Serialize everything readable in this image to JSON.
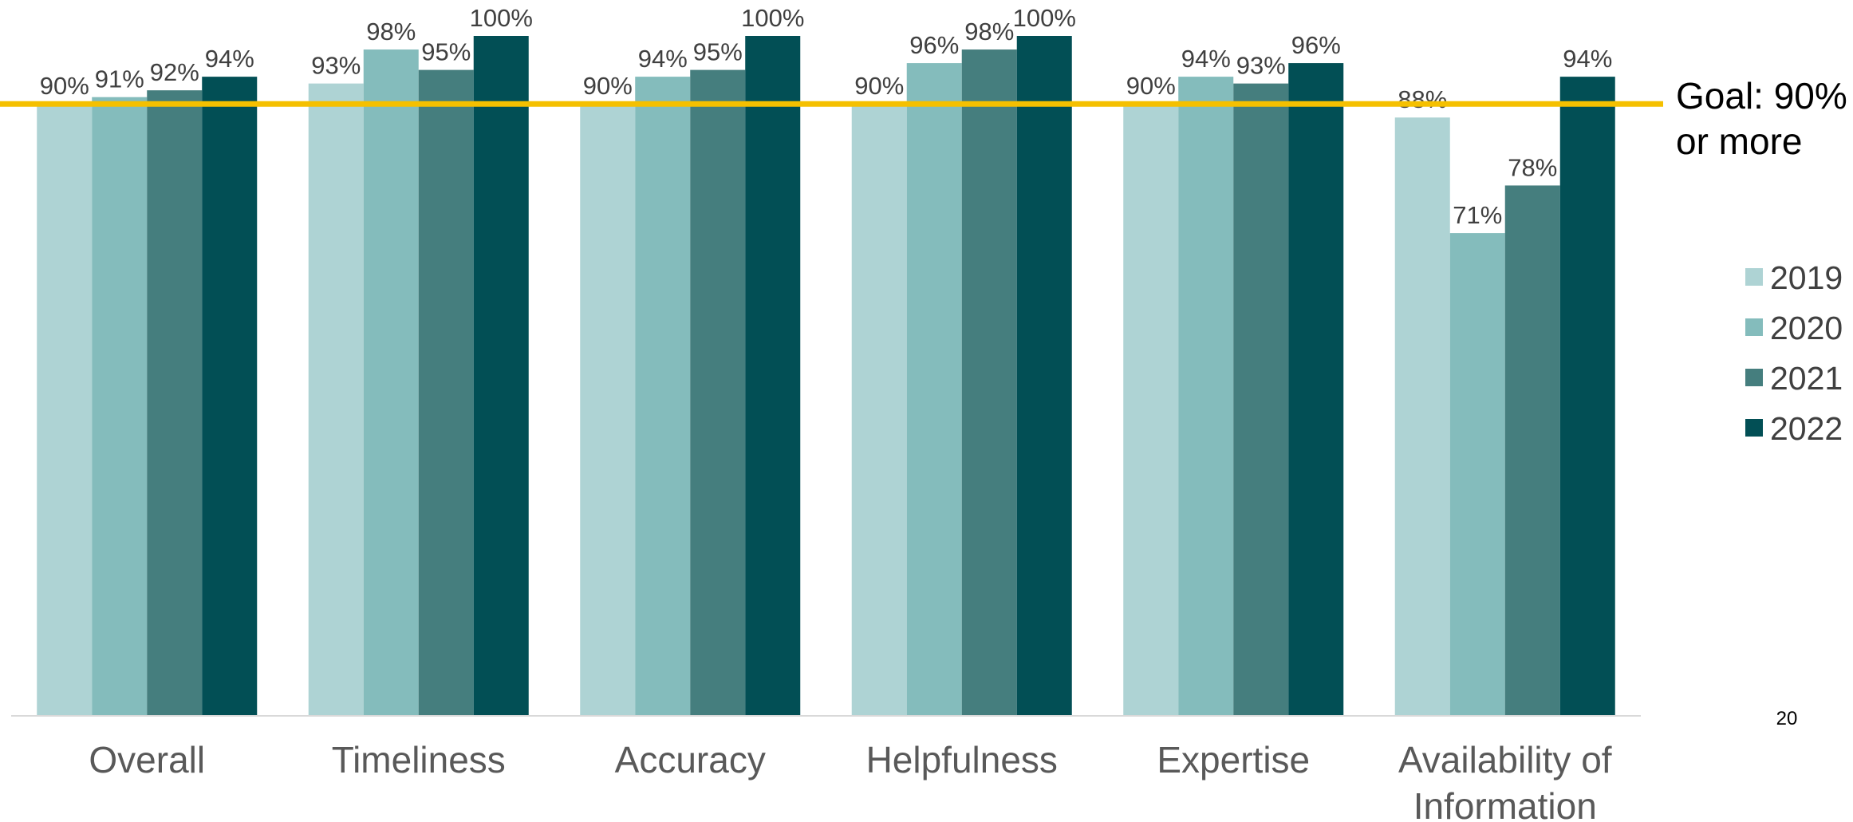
{
  "chart_data": {
    "type": "bar",
    "categories": [
      "Overall",
      "Timeliness",
      "Accuracy",
      "Helpfulness",
      "Expertise",
      "Availability of Information"
    ],
    "series": [
      {
        "name": "2019",
        "values": [
          90,
          93,
          90,
          90,
          90,
          88
        ],
        "labels": [
          "90%",
          "93%",
          "90%",
          "90%",
          "90%",
          "88%"
        ],
        "color": "#aed3d4"
      },
      {
        "name": "2020",
        "values": [
          91,
          98,
          94,
          96,
          94,
          71
        ],
        "labels": [
          "91%",
          "98%",
          "94%",
          "96%",
          "94%",
          "71%"
        ],
        "color": "#84bcbc"
      },
      {
        "name": "2021",
        "values": [
          92,
          95,
          95,
          98,
          93,
          78
        ],
        "labels": [
          "92%",
          "95%",
          "95%",
          "98%",
          "93%",
          "78%"
        ],
        "color": "#457e7e"
      },
      {
        "name": "2022",
        "values": [
          94,
          100,
          100,
          100,
          96,
          94
        ],
        "labels": [
          "94%",
          "100%",
          "100%",
          "100%",
          "96%",
          "94%"
        ],
        "color": "#024f55"
      }
    ],
    "ylim": [
      0,
      100
    ],
    "grid": false,
    "legend_position": "right",
    "goal_line": {
      "value": 90,
      "color": "#f5c000",
      "label_line1": "Goal: 90%",
      "label_line2": "or more"
    }
  },
  "slide": {
    "page_number": "20"
  }
}
